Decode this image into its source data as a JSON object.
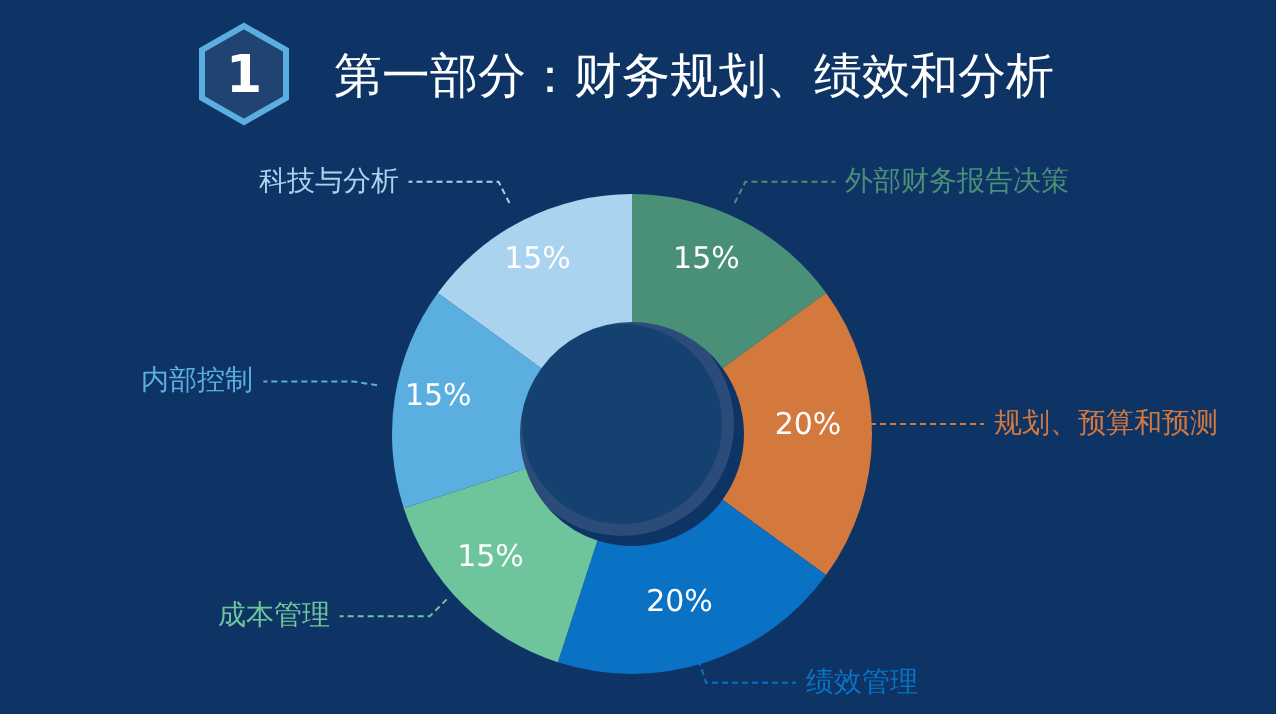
{
  "chart_data": {
    "type": "donut",
    "title": "第一部分：财务规划、绩效和分析",
    "annotations": [
      "1"
    ],
    "categories": [
      "外部财务报告决策",
      "规划、预算和预测",
      "绩效管理",
      "成本管理",
      "内部控制",
      "科技与分析"
    ],
    "values": [
      15,
      20,
      20,
      15,
      15,
      15
    ],
    "colors": [
      "#4a8f78",
      "#d4793e",
      "#0a72c4",
      "#6fc59b",
      "#5aaee0",
      "#a9d3ee"
    ],
    "value_labels": [
      "15%",
      "20%",
      "20%",
      "15%",
      "15%",
      "15%"
    ],
    "legend": false
  }
}
